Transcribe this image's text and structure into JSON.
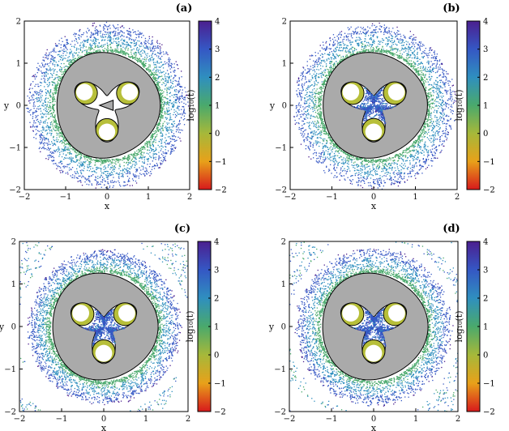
{
  "chart_data": [
    {
      "type": "heatmap",
      "panel": "(a)",
      "xlabel": "x",
      "ylabel": "y",
      "xlim": [
        -2,
        2
      ],
      "ylim": [
        -2,
        2
      ],
      "x_ticks": [
        -2,
        -1,
        0,
        1,
        2
      ],
      "y_ticks": [
        -2,
        -1,
        0,
        1,
        2
      ],
      "colorbar_label": "log₁₀(t)",
      "colorbar_range": [
        -2,
        4
      ],
      "colorbar_ticks": [
        -2,
        -1,
        0,
        1,
        2,
        3,
        4
      ],
      "colormap": [
        "#d7191c",
        "#e8a11a",
        "#a6b83a",
        "#4aa96c",
        "#2f8fbf",
        "#3557c4",
        "#4b1f8f"
      ],
      "outer_ring": [
        1.3,
        2.0
      ],
      "inner_core": false,
      "corner_escape": false
    },
    {
      "type": "heatmap",
      "panel": "(b)",
      "xlabel": "x",
      "ylabel": "y",
      "xlim": [
        -2,
        2
      ],
      "ylim": [
        -2,
        2
      ],
      "x_ticks": [
        -2,
        -1,
        0,
        1,
        2
      ],
      "y_ticks": [
        -2,
        -1,
        0,
        1,
        2
      ],
      "colorbar_label": "log₁₀(t)",
      "colorbar_range": [
        -2,
        4
      ],
      "colorbar_ticks": [
        -2,
        -1,
        0,
        1,
        2,
        3,
        4
      ],
      "colormap": [
        "#d7191c",
        "#e8a11a",
        "#a6b83a",
        "#4aa96c",
        "#2f8fbf",
        "#3557c4",
        "#4b1f8f"
      ],
      "outer_ring": [
        1.3,
        2.0
      ],
      "inner_core": true,
      "corner_escape": false
    },
    {
      "type": "heatmap",
      "panel": "(c)",
      "xlabel": "x",
      "ylabel": "y",
      "xlim": [
        -2,
        2
      ],
      "ylim": [
        -2,
        2
      ],
      "x_ticks": [
        -2,
        -1,
        0,
        1,
        2
      ],
      "y_ticks": [
        -2,
        -1,
        0,
        1,
        2
      ],
      "colorbar_label": "log₁₀(t)",
      "colorbar_range": [
        -2,
        4
      ],
      "colorbar_ticks": [
        -2,
        -1,
        0,
        1,
        2,
        3,
        4
      ],
      "colormap": [
        "#d7191c",
        "#e8a11a",
        "#a6b83a",
        "#4aa96c",
        "#2f8fbf",
        "#3557c4",
        "#4b1f8f"
      ],
      "outer_ring": [
        1.3,
        1.85
      ],
      "inner_core": true,
      "corner_escape": true
    },
    {
      "type": "heatmap",
      "panel": "(d)",
      "xlabel": "x",
      "ylabel": "y",
      "xlim": [
        -2,
        2
      ],
      "ylim": [
        -2,
        2
      ],
      "x_ticks": [
        -2,
        -1,
        0,
        1,
        2
      ],
      "y_ticks": [
        -2,
        -1,
        0,
        1,
        2
      ],
      "colorbar_label": "log₁₀(t)",
      "colorbar_range": [
        -2,
        4
      ],
      "colorbar_ticks": [
        -2,
        -1,
        0,
        1,
        2,
        3,
        4
      ],
      "colormap": [
        "#d7191c",
        "#e8a11a",
        "#a6b83a",
        "#4aa96c",
        "#2f8fbf",
        "#3557c4",
        "#4b1f8f"
      ],
      "outer_ring": [
        1.3,
        1.9
      ],
      "inner_core": true,
      "corner_escape": true
    }
  ]
}
